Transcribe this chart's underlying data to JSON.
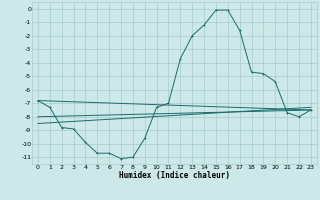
{
  "title": "",
  "xlabel": "Humidex (Indice chaleur)",
  "bg_color": "#cce8e8",
  "grid_color": "#aacccc",
  "line_color": "#1a6b6b",
  "xlim": [
    -0.5,
    23.5
  ],
  "ylim": [
    -11.5,
    0.5
  ],
  "xticks": [
    0,
    1,
    2,
    3,
    4,
    5,
    6,
    7,
    8,
    9,
    10,
    11,
    12,
    13,
    14,
    15,
    16,
    17,
    18,
    19,
    20,
    21,
    22,
    23
  ],
  "yticks": [
    0,
    -1,
    -2,
    -3,
    -4,
    -5,
    -6,
    -7,
    -8,
    -9,
    -10,
    -11
  ],
  "curve1_x": [
    0,
    1,
    2,
    3,
    4,
    5,
    6,
    7,
    8,
    9,
    10,
    11,
    12,
    13,
    14,
    15,
    16,
    17,
    18,
    19,
    20,
    21,
    22,
    23
  ],
  "curve1_y": [
    -6.8,
    -7.3,
    -8.8,
    -8.9,
    -9.9,
    -10.7,
    -10.7,
    -11.1,
    -11.0,
    -9.6,
    -7.3,
    -7.0,
    -3.7,
    -2.0,
    -1.2,
    -0.1,
    -0.1,
    -1.6,
    -4.7,
    -4.8,
    -5.4,
    -7.7,
    -8.0,
    -7.5
  ],
  "curve2_x": [
    0,
    23
  ],
  "curve2_y": [
    -6.8,
    -7.5
  ],
  "curve3_x": [
    0,
    23
  ],
  "curve3_y": [
    -8.0,
    -7.5
  ],
  "curve4_x": [
    0,
    23
  ],
  "curve4_y": [
    -8.5,
    -7.3
  ]
}
